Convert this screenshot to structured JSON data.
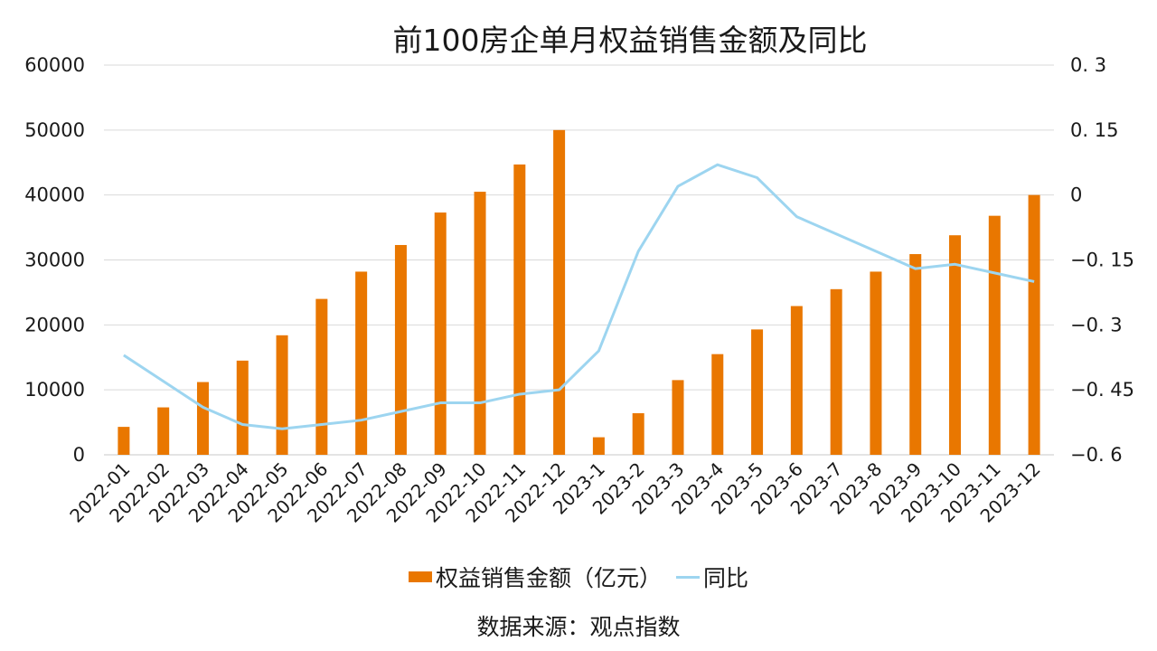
{
  "chart_data": {
    "type": "bar",
    "title": "前100房企单月权益销售金额及同比",
    "source": "数据来源：观点指数",
    "categories": [
      "2022-01",
      "2022-02",
      "2022-03",
      "2022-04",
      "2022-05",
      "2022-06",
      "2022-07",
      "2022-08",
      "2022-09",
      "2022-10",
      "2022-11",
      "2022-12",
      "2023-1",
      "2023-2",
      "2023-3",
      "2023-4",
      "2023-5",
      "2023-6",
      "2023-7",
      "2023-8",
      "2023-9",
      "2023-10",
      "2023-11",
      "2023-12"
    ],
    "series": [
      {
        "name": "权益销售金额（亿元）",
        "type": "bar",
        "axis": "left",
        "color": "#E97700",
        "values": [
          4300,
          7300,
          11200,
          14500,
          18400,
          24000,
          28200,
          32300,
          37300,
          40500,
          44700,
          50000,
          2700,
          6400,
          11500,
          15500,
          19300,
          22900,
          25500,
          28200,
          30900,
          33800,
          36800,
          40000
        ]
      },
      {
        "name": "同比",
        "type": "line",
        "axis": "right",
        "color": "#9DD5F0",
        "values": [
          -0.37,
          -0.43,
          -0.49,
          -0.53,
          -0.54,
          -0.53,
          -0.52,
          -0.5,
          -0.48,
          -0.48,
          -0.46,
          -0.45,
          -0.36,
          -0.13,
          0.02,
          0.07,
          0.04,
          -0.05,
          -0.09,
          -0.13,
          -0.17,
          -0.16,
          -0.18,
          -0.2
        ]
      }
    ],
    "y_left": {
      "min": 0,
      "max": 60000,
      "ticks": [
        "60000",
        "50000",
        "40000",
        "30000",
        "20000",
        "10000",
        "0"
      ]
    },
    "y_right": {
      "min": -0.6,
      "max": 0.3,
      "ticks": [
        "0. 3",
        "0. 15",
        "0",
        "−0. 15",
        "−0. 3",
        "−0. 45",
        "−0. 6"
      ]
    },
    "xlabel": "",
    "ylabel": "",
    "grid": true,
    "legend_position": "bottom"
  }
}
